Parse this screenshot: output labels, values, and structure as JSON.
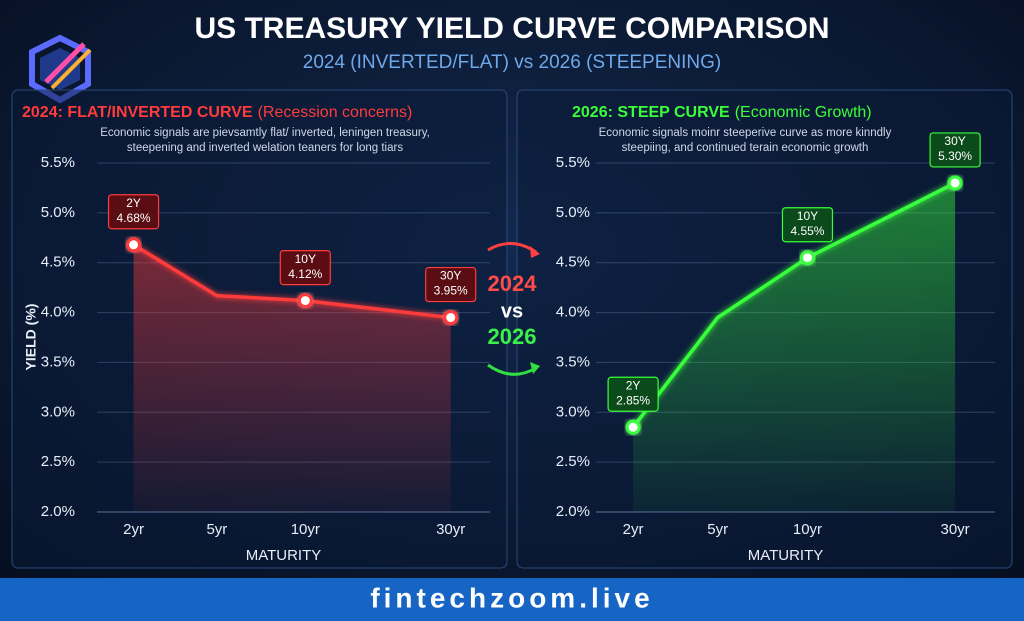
{
  "title": "US TREASURY YIELD CURVE COMPARISON",
  "subtitle": "2024 (INVERTED/FLAT) vs 2026 (STEEPENING)",
  "versus": {
    "left": "2024",
    "middle": "vs",
    "right": "2026"
  },
  "footer": "fintechzoom.live",
  "chart_data": [
    {
      "type": "line",
      "title": "2024: FLAT/INVERTED CURVE",
      "title_note": "(Recession concerns)",
      "description": [
        "Economic signals are pievsamtly flat/ inverted, leningen treasury,",
        "steepening and inverted welation teaners for long tiars"
      ],
      "x_label": "MATURITY",
      "y_label": "YIELD (%)",
      "categories": [
        "2yr",
        "5yr",
        "10yr",
        "30yr"
      ],
      "color": "#ff3b3b",
      "values": [
        4.68,
        4.17,
        4.12,
        3.95
      ],
      "point_labels": [
        "2Y",
        null,
        "10Y",
        "30Y"
      ],
      "value_labels": [
        "4.68%",
        null,
        "4.12%",
        "3.95%"
      ],
      "ylim": [
        2.0,
        5.5
      ],
      "yticks": [
        {
          "value": 2,
          "label": "2.0%"
        },
        {
          "value": 2.5,
          "label": "2.5%"
        },
        {
          "value": 3,
          "label": "3.0%"
        },
        {
          "value": 3.5,
          "label": "3.5%"
        },
        {
          "value": 4,
          "label": "4.0%"
        },
        {
          "value": 4.5,
          "label": "4.5%"
        },
        {
          "value": 5,
          "label": "5.0%"
        },
        {
          "value": 5.5,
          "label": "5.5%"
        }
      ],
      "grid": true
    },
    {
      "type": "line",
      "title": "2026: STEEP CURVE",
      "title_note": "(Economic Growth)",
      "description": [
        "Economic signals moinr steeperive curve as more kinndly",
        "steepiing, and continued terain economic growth"
      ],
      "x_label": "MATURITY",
      "categories": [
        "2yr",
        "5yr",
        "10yr",
        "30yr"
      ],
      "color": "#39ff3a",
      "values": [
        2.85,
        3.95,
        4.55,
        5.3
      ],
      "point_labels": [
        "2Y",
        null,
        "10Y",
        "30Y"
      ],
      "value_labels": [
        "2.85%",
        null,
        "4.55%",
        "5.30%"
      ],
      "ylim": [
        2.0,
        5.5
      ],
      "yticks": [
        {
          "value": 2,
          "label": "2.0%"
        },
        {
          "value": 2.5,
          "label": "2.5%"
        },
        {
          "value": 3,
          "label": "3.0%"
        },
        {
          "value": 3.5,
          "label": "3.5%"
        },
        {
          "value": 4,
          "label": "4.0%"
        },
        {
          "value": 4.5,
          "label": "4.5%"
        },
        {
          "value": 5,
          "label": "5.0%"
        },
        {
          "value": 5.5,
          "label": "5.5%"
        }
      ],
      "grid": true
    }
  ]
}
